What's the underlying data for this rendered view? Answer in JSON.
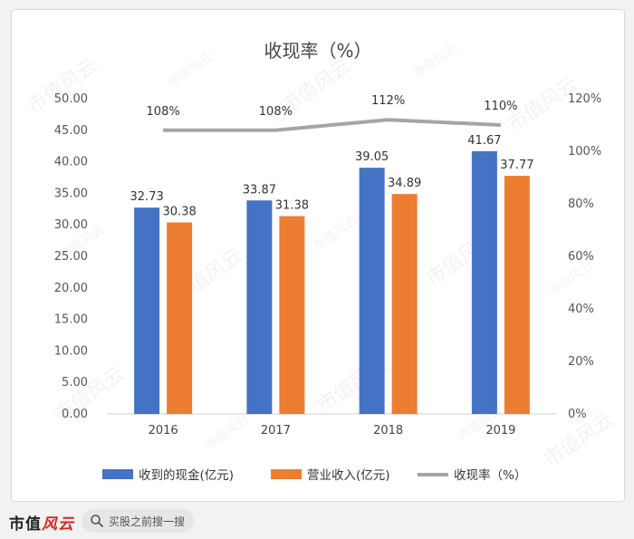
{
  "chart_data": {
    "type": "bar",
    "title": "收现率（%）",
    "categories": [
      "2016",
      "2017",
      "2018",
      "2019"
    ],
    "series": [
      {
        "name": "收到的现金(亿元)",
        "kind": "bar",
        "axis": "left",
        "color": "#4472c4",
        "values": [
          32.73,
          33.87,
          39.05,
          41.67
        ],
        "labels": [
          "32.73",
          "33.87",
          "39.05",
          "41.67"
        ]
      },
      {
        "name": "营业收入(亿元)",
        "kind": "bar",
        "axis": "left",
        "color": "#ed7d31",
        "values": [
          30.38,
          31.38,
          34.89,
          37.77
        ],
        "labels": [
          "30.38",
          "31.38",
          "34.89",
          "37.77"
        ]
      },
      {
        "name": "收现率（%）",
        "kind": "line",
        "axis": "right",
        "color": "#a5a5a5",
        "values": [
          108,
          108,
          112,
          110
        ],
        "labels": [
          "108%",
          "108%",
          "112%",
          "110%"
        ]
      }
    ],
    "y_left": {
      "min": 0,
      "max": 50,
      "ticks": [
        "0.00",
        "5.00",
        "10.00",
        "15.00",
        "20.00",
        "25.00",
        "30.00",
        "35.00",
        "40.00",
        "45.00",
        "50.00"
      ]
    },
    "y_right": {
      "min": 0,
      "max": 120,
      "ticks": [
        "0%",
        "20%",
        "40%",
        "60%",
        "80%",
        "100%",
        "120%"
      ]
    },
    "grid": false,
    "legend_position": "bottom"
  },
  "watermark": "市值风云",
  "footer": {
    "logo_main": "市值",
    "logo_accent": "风云",
    "search_placeholder": "买股之前搜一搜",
    "search_icon": "search-icon"
  }
}
